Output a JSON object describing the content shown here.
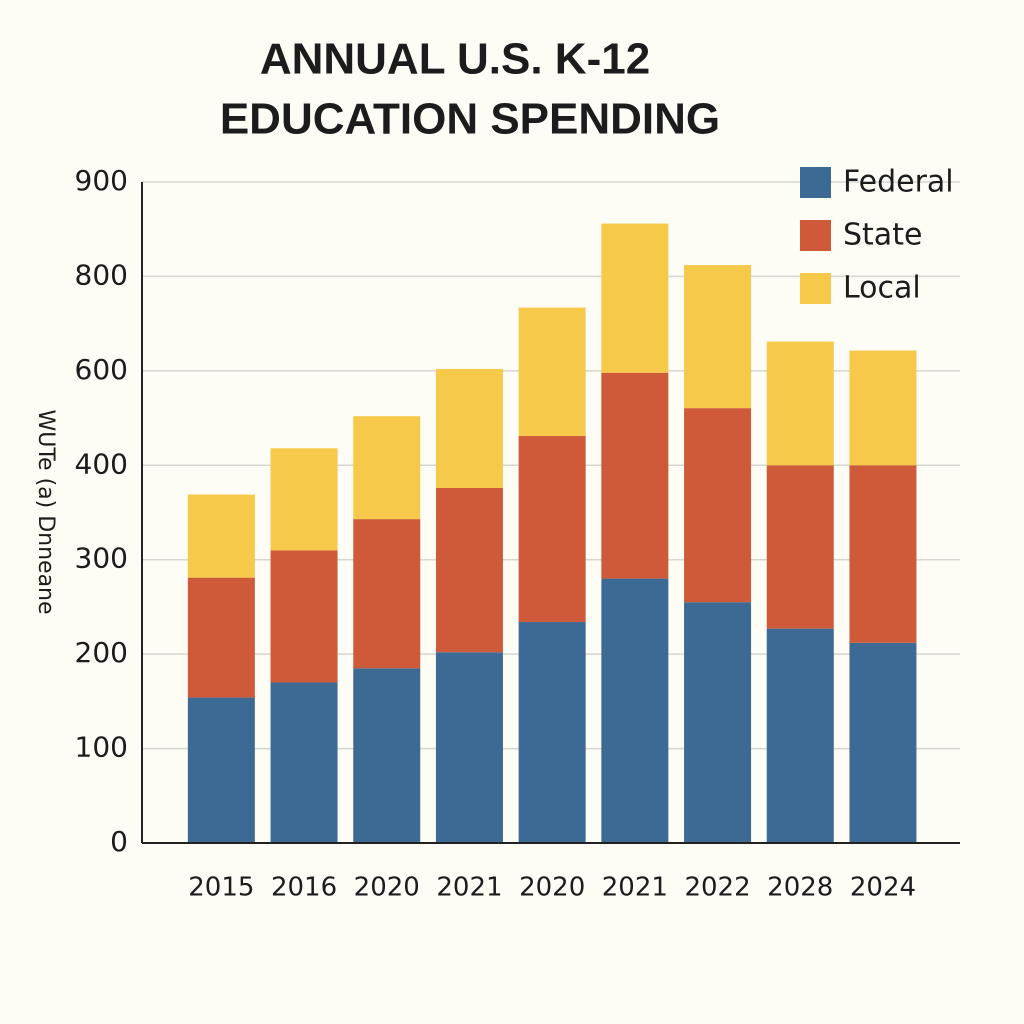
{
  "chart_data": {
    "type": "stacked_bar",
    "title": [
      "ANNUAL U.S. K-12",
      "EDUCATION SPENDING"
    ],
    "y_label": "WUTe (a) Dnneane",
    "categories": [
      "2015",
      "2016",
      "2020",
      "2021",
      "2020",
      "2021",
      "2022",
      "2028",
      "2024"
    ],
    "series": [
      {
        "name": "Federal",
        "color": "#3d6a94",
        "values": [
          154,
          170,
          185,
          202,
          234,
          280,
          255,
          227,
          212
        ]
      },
      {
        "name": "State",
        "color": "#cf5a3a",
        "values": [
          127,
          140,
          158,
          174,
          228,
          316,
          266,
          173,
          188
        ]
      },
      {
        "name": "Local",
        "color": "#f6c94a",
        "values": [
          88,
          126,
          161,
          228,
          272,
          260,
          291,
          262,
          243
        ]
      }
    ],
    "ylim": [
      0,
      900
    ],
    "yticks": [
      0,
      100,
      200,
      300,
      400,
      600,
      800,
      900
    ],
    "grid": true,
    "legend": "top-right"
  }
}
